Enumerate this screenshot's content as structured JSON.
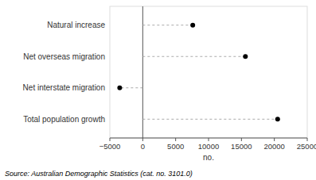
{
  "chart_data": {
    "type": "dot",
    "categories": [
      "Natural increase",
      "Net overseas migration",
      "Net interstate migration",
      "Total population growth"
    ],
    "values": [
      7600,
      15600,
      -3500,
      20500
    ],
    "color": "#000000",
    "line_style": "dashed",
    "xlim": [
      -5000,
      25000
    ],
    "xticks": [
      {
        "value": -5000,
        "label": "−5000"
      },
      0,
      5000,
      10000,
      15000,
      20000,
      25000
    ],
    "xlabel": "no.",
    "annotation": "Source: Australian Demographic Statistics (cat. no.  3101.0)",
    "grid": false
  }
}
